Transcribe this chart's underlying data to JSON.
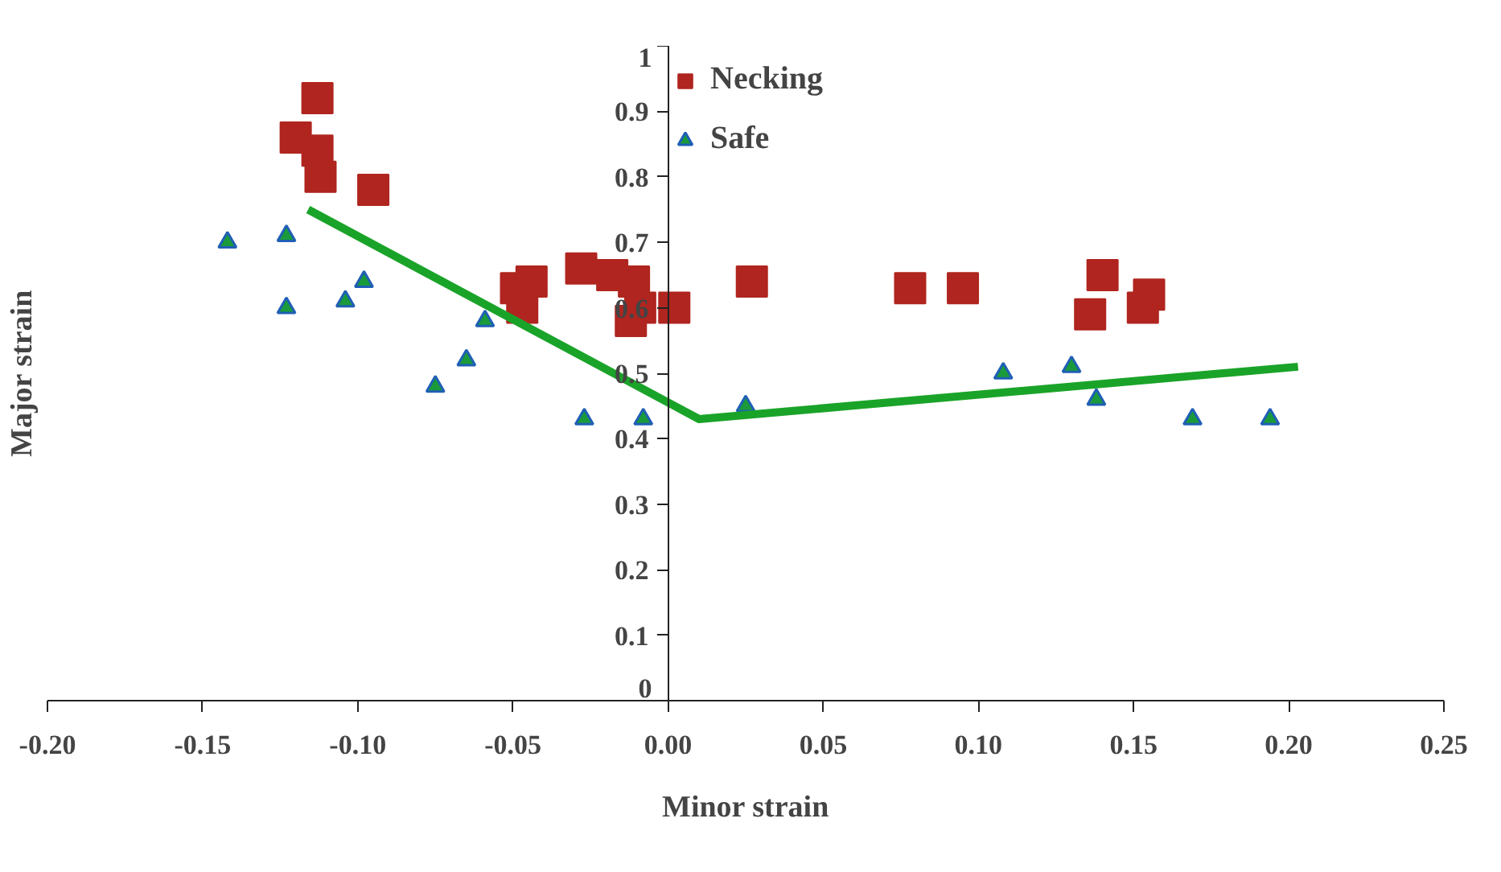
{
  "chart_data": {
    "type": "scatter",
    "xlabel": "Minor strain",
    "ylabel": "Major strain",
    "xlim": [
      -0.2,
      0.25
    ],
    "ylim": [
      0,
      1
    ],
    "xticks": [
      {
        "value": -0.2,
        "label": "-0.20"
      },
      {
        "value": -0.15,
        "label": "-0.15"
      },
      {
        "value": -0.1,
        "label": "-0.10"
      },
      {
        "value": -0.05,
        "label": "-0.05"
      },
      {
        "value": 0,
        "label": "0.00"
      },
      {
        "value": 0.05,
        "label": "0.05"
      },
      {
        "value": 0.1,
        "label": "0.10"
      },
      {
        "value": 0.15,
        "label": "0.15"
      },
      {
        "value": 0.2,
        "label": "0.20"
      },
      {
        "value": 0.25,
        "label": "0.25"
      }
    ],
    "yticks": [
      0,
      0.1,
      0.2,
      0.3,
      0.4,
      0.5,
      0.6,
      0.7,
      0.8,
      0.9,
      1
    ],
    "grid": false,
    "legend": "top",
    "series": [
      {
        "name": "Necking",
        "marker": "square",
        "color": "#b0251f",
        "x": [
          -0.113,
          -0.12,
          -0.113,
          -0.112,
          -0.095,
          -0.049,
          -0.044,
          -0.047,
          -0.028,
          -0.018,
          -0.011,
          -0.009,
          -0.012,
          0.002,
          0.027,
          0.078,
          0.095,
          0.14,
          0.136,
          0.155,
          0.153
        ],
        "values": [
          0.92,
          0.86,
          0.84,
          0.8,
          0.78,
          0.63,
          0.64,
          0.6,
          0.66,
          0.65,
          0.64,
          0.6,
          0.58,
          0.6,
          0.64,
          0.63,
          0.63,
          0.65,
          0.59,
          0.62,
          0.6
        ]
      },
      {
        "name": "Safe",
        "marker": "triangle",
        "color": "#1a9a3a",
        "x": [
          -0.142,
          -0.123,
          -0.123,
          -0.104,
          -0.098,
          -0.059,
          -0.065,
          -0.075,
          -0.027,
          -0.008,
          0.025,
          0.108,
          0.13,
          0.138,
          0.169,
          0.194
        ],
        "values": [
          0.7,
          0.71,
          0.6,
          0.61,
          0.64,
          0.58,
          0.52,
          0.48,
          0.43,
          0.43,
          0.45,
          0.5,
          0.51,
          0.46,
          0.43,
          0.43
        ]
      },
      {
        "type": "line",
        "color": "#1aa329",
        "x": [
          -0.116,
          0.01,
          0.203
        ],
        "values": [
          0.75,
          0.43,
          0.51
        ]
      }
    ]
  }
}
